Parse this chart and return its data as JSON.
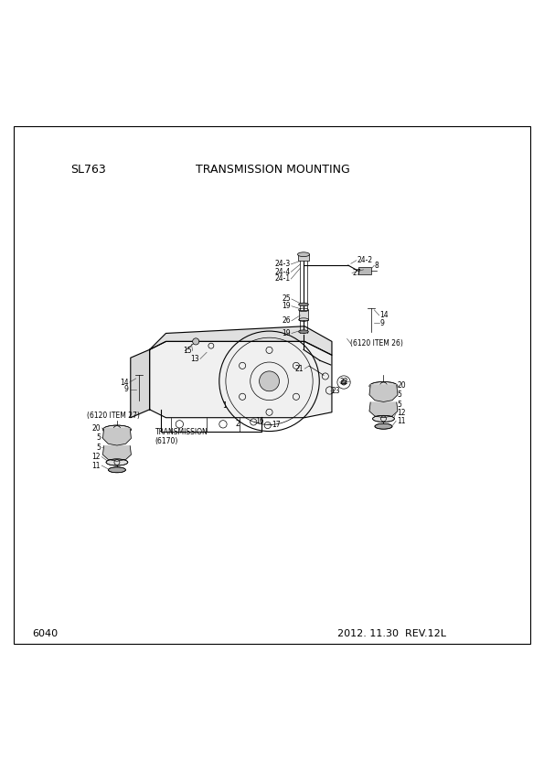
{
  "title": "TRANSMISSION MOUNTING",
  "subtitle": "SL763",
  "page_num": "6040",
  "date_rev": "2012. 11.30  REV.12L",
  "bg_color": "#ffffff",
  "line_color": "#000000",
  "font_size_title": 9,
  "font_size_label": 5.5,
  "font_size_footer": 8,
  "lw_main": 0.8,
  "lw_thin": 0.5,
  "lw_leader": 0.4
}
